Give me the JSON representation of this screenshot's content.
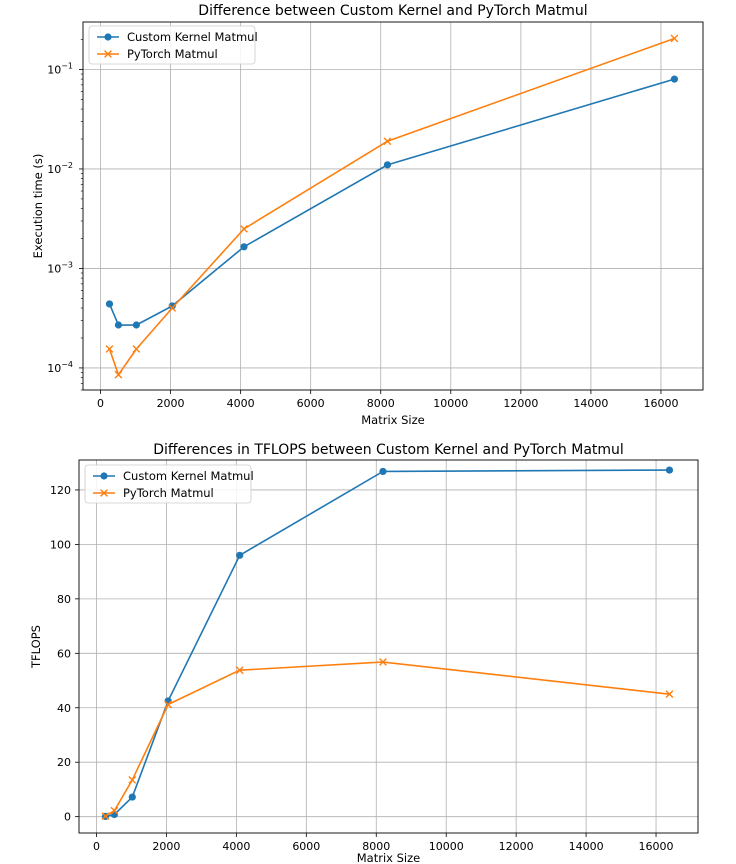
{
  "chart_data": [
    {
      "type": "line",
      "title": "Difference between Custom Kernel and PyTorch Matmul",
      "xlabel": "Matrix Size",
      "ylabel": "Execution time (s)",
      "yscale": "log",
      "xlim": [
        -500,
        17200
      ],
      "ylim": [
        6e-05,
        0.3
      ],
      "xticks": [
        0,
        2000,
        4000,
        6000,
        8000,
        10000,
        12000,
        14000,
        16000
      ],
      "yticks": [
        {
          "value": 0.0001,
          "base": "10",
          "exp": "−4"
        },
        {
          "value": 0.001,
          "base": "10",
          "exp": "−3"
        },
        {
          "value": 0.01,
          "base": "10",
          "exp": "−2"
        },
        {
          "value": 0.1,
          "base": "10",
          "exp": "−1"
        }
      ],
      "grid": true,
      "legend_position": "top-left",
      "series": [
        {
          "name": "Custom Kernel Matmul",
          "color": "#1f77b4",
          "marker": "circle",
          "x": [
            256,
            512,
            1024,
            2048,
            4096,
            8192,
            16384
          ],
          "y": [
            0.00044,
            0.00027,
            0.00027,
            0.00042,
            0.00165,
            0.011,
            0.08
          ]
        },
        {
          "name": "PyTorch Matmul",
          "color": "#ff7f0e",
          "marker": "x",
          "x": [
            256,
            512,
            1024,
            2048,
            4096,
            8192,
            16384
          ],
          "y": [
            0.000155,
            8.55e-05,
            0.000155,
            0.0004,
            0.0025,
            0.019,
            0.205
          ]
        }
      ]
    },
    {
      "type": "line",
      "title": "Differences in TFLOPS between Custom Kernel and PyTorch Matmul",
      "xlabel": "Matrix Size",
      "ylabel": "TFLOPS",
      "yscale": "linear",
      "xlim": [
        -500,
        17200
      ],
      "ylim": [
        -6,
        131
      ],
      "xticks": [
        0,
        2000,
        4000,
        6000,
        8000,
        10000,
        12000,
        14000,
        16000
      ],
      "yticks": [
        0,
        20,
        40,
        60,
        80,
        100,
        120
      ],
      "grid": true,
      "legend_position": "top-left",
      "series": [
        {
          "name": "Custom Kernel Matmul",
          "color": "#1f77b4",
          "marker": "circle",
          "x": [
            256,
            512,
            1024,
            2048,
            4096,
            8192,
            16384
          ],
          "y": [
            0.1,
            0.8,
            7.2,
            42.5,
            96,
            126.8,
            127.3
          ]
        },
        {
          "name": "PyTorch Matmul",
          "color": "#ff7f0e",
          "marker": "x",
          "x": [
            256,
            512,
            1024,
            2048,
            4096,
            8192,
            16384
          ],
          "y": [
            0.2,
            2.2,
            13.5,
            41.2,
            53.8,
            56.8,
            45
          ]
        }
      ]
    }
  ]
}
